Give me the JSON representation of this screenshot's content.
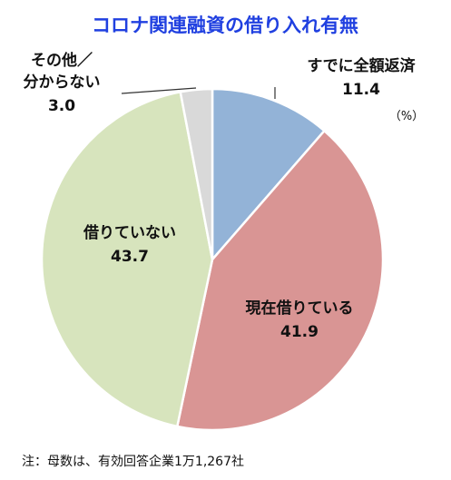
{
  "chart_data": {
    "type": "pie",
    "title": "コロナ関連融資の借り入れ有無",
    "unit": "（%）",
    "note": "注：母数は、有効回答企業1万1,267社",
    "start_angle_deg": 0,
    "direction": "clockwise",
    "slices": [
      {
        "label_lines": [
          "すでに全額返済"
        ],
        "value": 11.4,
        "value_text": "11.4",
        "color": "#93b3d7"
      },
      {
        "label_lines": [
          "現在借りている"
        ],
        "value": 41.9,
        "value_text": "41.9",
        "color": "#d99594"
      },
      {
        "label_lines": [
          "借りていない"
        ],
        "value": 43.7,
        "value_text": "43.7",
        "color": "#d7e4bd"
      },
      {
        "label_lines": [
          "その他／",
          "分からない"
        ],
        "value": 3.0,
        "value_text": "3.0",
        "color": "#d9d9d9"
      }
    ]
  }
}
